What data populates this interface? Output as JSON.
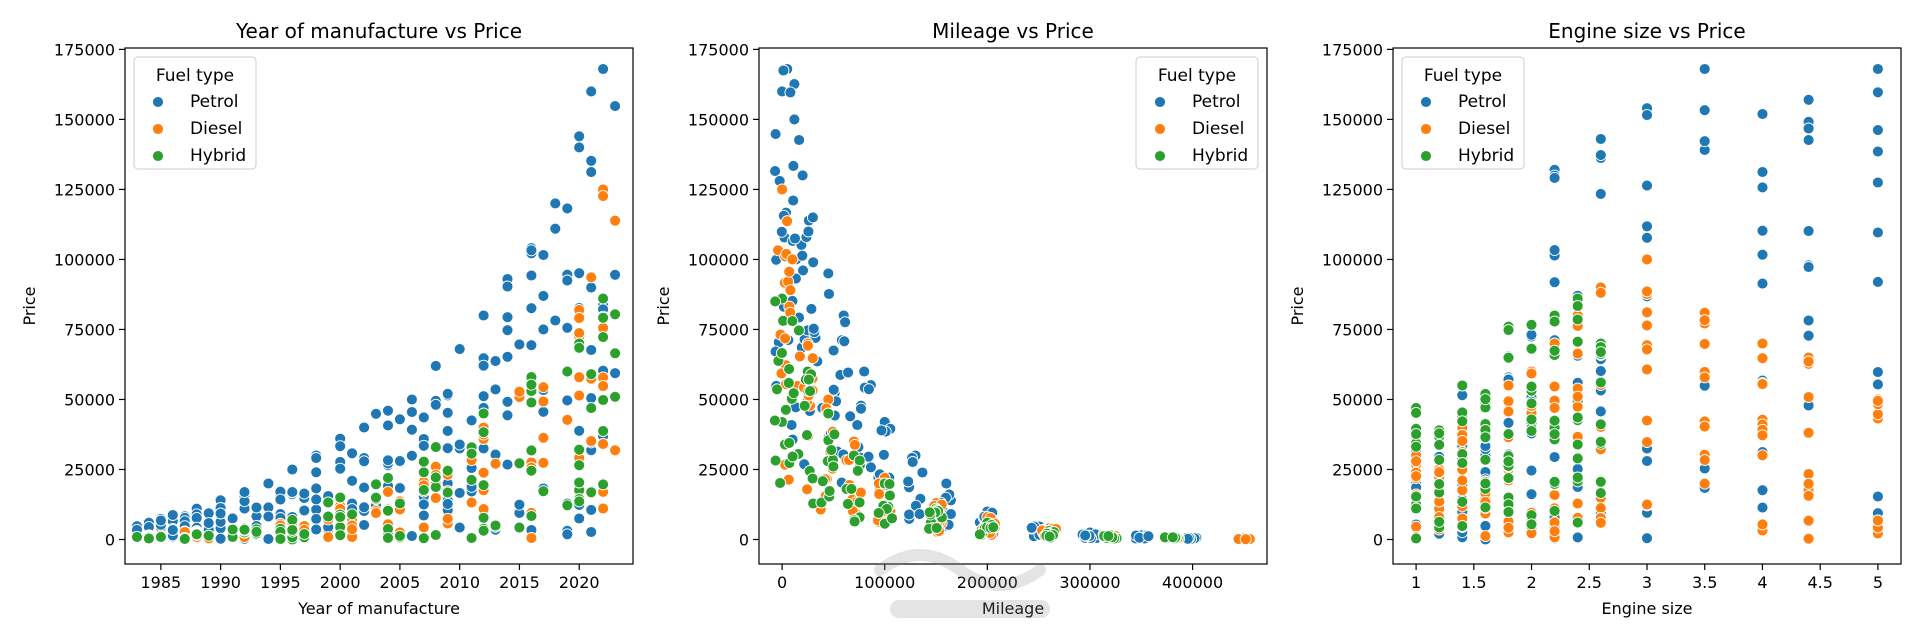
{
  "chart_data": [
    {
      "type": "scatter",
      "title": "Year of manufacture vs Price",
      "xlabel": "Year of manufacture",
      "ylabel": "Price",
      "xlim": [
        1982,
        2024.5
      ],
      "ylim": [
        -8750,
        175500
      ],
      "xticks": [
        1985,
        1990,
        1995,
        2000,
        2005,
        2010,
        2015,
        2020
      ],
      "yticks": [
        0,
        25000,
        50000,
        75000,
        100000,
        125000,
        150000,
        175000
      ],
      "legend": {
        "title": "Fuel type",
        "placement": "top-left"
      },
      "grid": false,
      "series": [
        {
          "name": "Petrol",
          "color": "#1f77b4",
          "x": [
            1984,
            1986,
            1988,
            1990,
            1992,
            1994,
            1996,
            1998,
            2000,
            2002,
            2004,
            2006,
            2008,
            2010,
            2012,
            2014,
            2016,
            2018,
            2020,
            2021,
            2022
          ],
          "y": [
            6000,
            9000,
            11000,
            14000,
            17000,
            20000,
            25000,
            30000,
            36000,
            40000,
            46000,
            50000,
            62000,
            68000,
            80000,
            93000,
            104000,
            120000,
            140000,
            160000,
            168000
          ]
        },
        {
          "name": "Diesel",
          "color": "#ff7f0e",
          "x": [
            1984,
            1988,
            1992,
            1996,
            2000,
            2004,
            2008,
            2012,
            2016,
            2020,
            2022
          ],
          "y": [
            1500,
            3000,
            4000,
            6000,
            12000,
            17000,
            26000,
            40000,
            55000,
            82000,
            125000
          ]
        },
        {
          "name": "Hybrid",
          "color": "#2ca02c",
          "x": [
            1984,
            1988,
            1992,
            1996,
            2000,
            2004,
            2008,
            2012,
            2016,
            2020,
            2022
          ],
          "y": [
            1000,
            2500,
            4000,
            7000,
            15000,
            22000,
            33000,
            45000,
            58000,
            70000,
            86000
          ]
        }
      ]
    },
    {
      "type": "scatter",
      "title": "Mileage vs Price",
      "xlabel": "Mileage",
      "ylabel": "Price",
      "xlim": [
        -22500,
        472500
      ],
      "ylim": [
        -8750,
        175500
      ],
      "xticks": [
        0,
        100000,
        200000,
        300000,
        400000
      ],
      "yticks": [
        0,
        25000,
        50000,
        75000,
        100000,
        125000,
        150000,
        175000
      ],
      "legend": {
        "title": "Fuel type",
        "placement": "top-right"
      },
      "grid": false,
      "series": [
        {
          "name": "Petrol",
          "color": "#1f77b4",
          "x": [
            0,
            5000,
            12000,
            20000,
            30000,
            45000,
            60000,
            80000,
            100000,
            130000,
            160000,
            200000,
            250000,
            300000,
            350000,
            400000,
            450000
          ],
          "y": [
            160000,
            168000,
            150000,
            130000,
            115000,
            95000,
            80000,
            60000,
            42000,
            30000,
            20000,
            10000,
            5000,
            2500,
            1500,
            800,
            500
          ]
        },
        {
          "name": "Diesel",
          "color": "#ff7f0e",
          "x": [
            0,
            10000,
            25000,
            45000,
            70000,
            100000,
            150000,
            200000,
            260000,
            320000,
            380000,
            450000
          ],
          "y": [
            125000,
            100000,
            70000,
            50000,
            35000,
            22000,
            13000,
            8000,
            4000,
            2000,
            1000,
            500
          ]
        },
        {
          "name": "Hybrid",
          "color": "#2ca02c",
          "x": [
            0,
            10000,
            25000,
            45000,
            70000,
            100000,
            150000,
            200000,
            260000,
            320000,
            380000
          ],
          "y": [
            86000,
            78000,
            60000,
            45000,
            30000,
            20000,
            11000,
            6000,
            3000,
            1500,
            800
          ]
        }
      ]
    },
    {
      "type": "scatter",
      "title": "Engine size vs Price",
      "xlabel": "Engine size",
      "ylabel": "Price",
      "xlim": [
        0.8,
        5.2
      ],
      "ylim": [
        -8750,
        175500
      ],
      "xticks": [
        1.0,
        1.5,
        2.0,
        2.5,
        3.0,
        3.5,
        4.0,
        4.5,
        5.0
      ],
      "yticks": [
        0,
        25000,
        50000,
        75000,
        100000,
        125000,
        150000,
        175000
      ],
      "legend": {
        "title": "Fuel type",
        "placement": "top-left"
      },
      "grid": false,
      "series": [
        {
          "name": "Petrol",
          "color": "#1f77b4",
          "x": [
            1.0,
            1.2,
            1.4,
            1.6,
            1.8,
            2.0,
            2.2,
            2.4,
            2.6,
            3.0,
            3.5,
            4.0,
            4.4,
            5.0
          ],
          "y": [
            47000,
            39000,
            55000,
            52000,
            76000,
            77000,
            132000,
            87000,
            143000,
            154000,
            168000,
            152000,
            157000,
            168000
          ]
        },
        {
          "name": "Diesel",
          "color": "#ff7f0e",
          "x": [
            1.0,
            1.2,
            1.4,
            1.6,
            1.8,
            2.0,
            2.2,
            2.4,
            2.6,
            3.0,
            3.5,
            4.0,
            4.4,
            5.0
          ],
          "y": [
            30000,
            25000,
            40000,
            40000,
            55000,
            60000,
            70000,
            80000,
            90000,
            100000,
            81000,
            70000,
            65000,
            50000
          ]
        },
        {
          "name": "Hybrid",
          "color": "#2ca02c",
          "x": [
            1.0,
            1.2,
            1.4,
            1.6,
            1.8,
            2.0,
            2.2,
            2.4,
            2.6
          ],
          "y": [
            47000,
            39000,
            55000,
            52000,
            76000,
            77000,
            80000,
            86000,
            70000
          ]
        }
      ]
    }
  ]
}
